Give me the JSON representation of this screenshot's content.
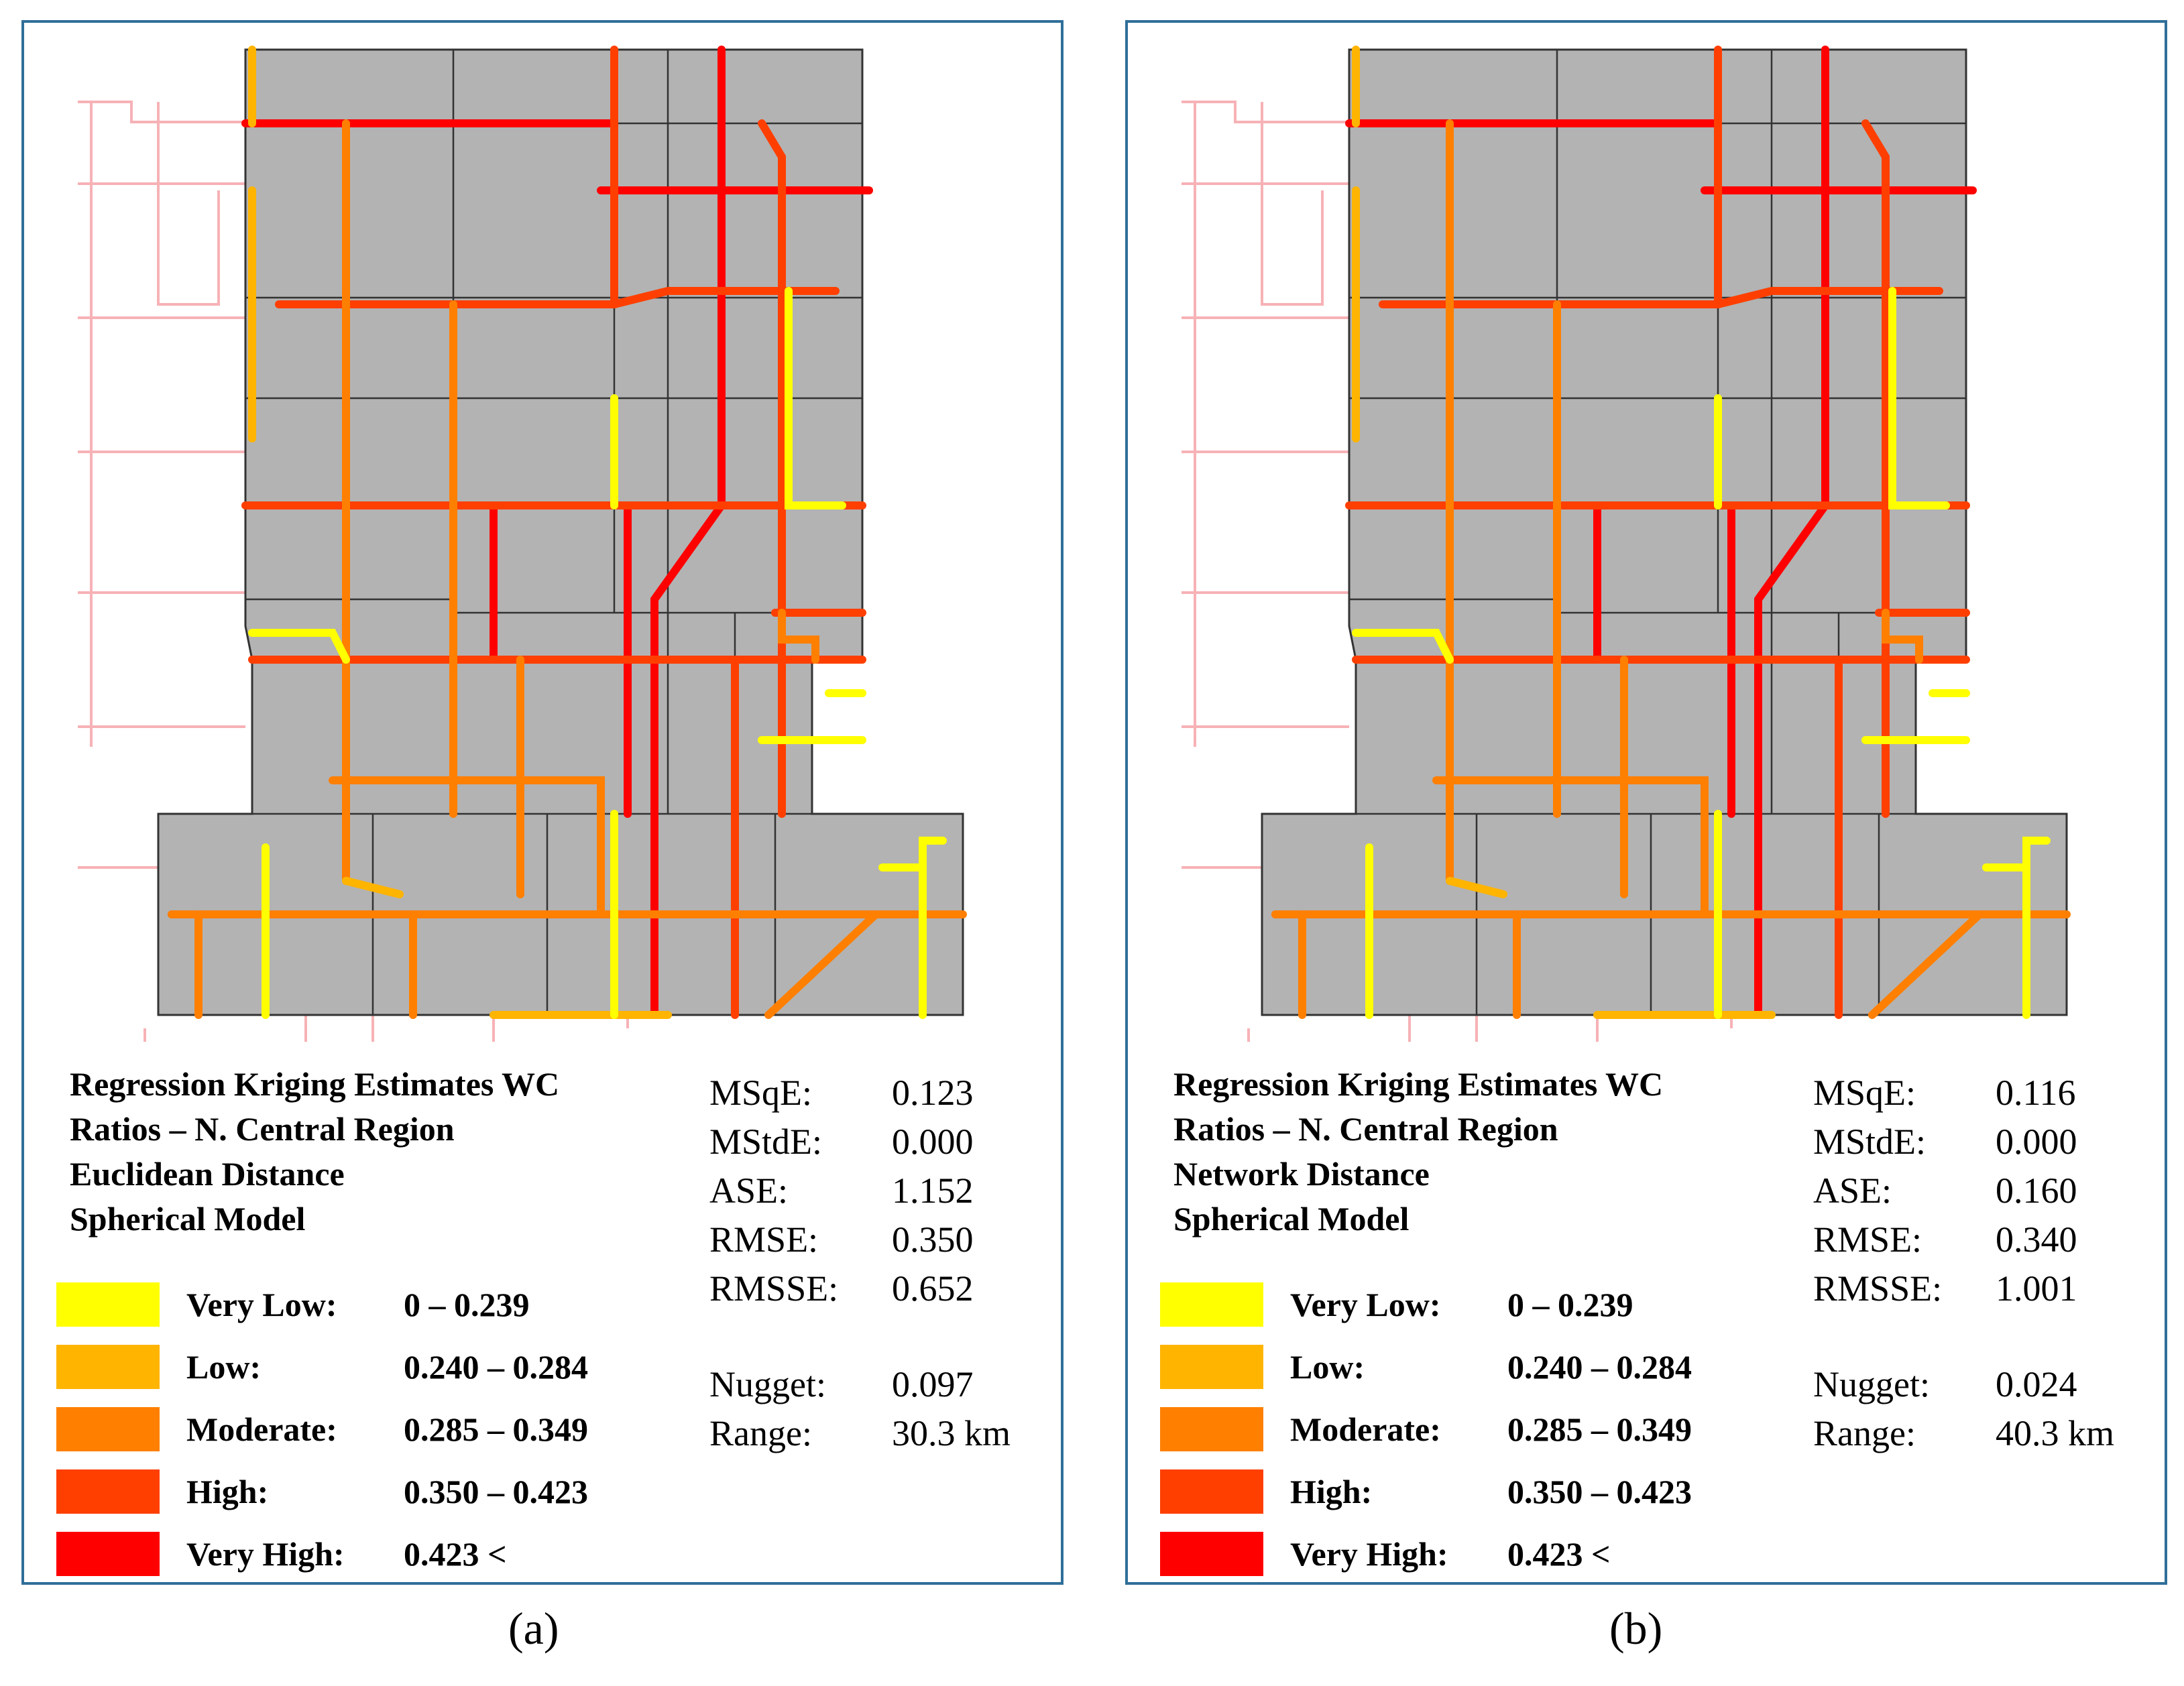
{
  "panels": [
    {
      "id": "a",
      "caption": "(a)",
      "title_lines": [
        "Regression Kriging Estimates WC",
        "Ratios – N. Central Region",
        "Euclidean Distance",
        "Spherical Model"
      ],
      "stats": [
        {
          "label": "MSqE:",
          "value": "0.123"
        },
        {
          "label": "MStdE:",
          "value": "0.000"
        },
        {
          "label": "ASE:",
          "value": "1.152"
        },
        {
          "label": "RMSE:",
          "value": "0.350"
        },
        {
          "label": "RMSSE:",
          "value": "0.652"
        }
      ],
      "model": [
        {
          "label": "Nugget:",
          "value": "0.097"
        },
        {
          "label": "Range:",
          "value": "30.3 km"
        }
      ]
    },
    {
      "id": "b",
      "caption": "(b)",
      "title_lines": [
        "Regression Kriging Estimates WC",
        "Ratios – N. Central Region",
        "Network Distance",
        "Spherical Model"
      ],
      "stats": [
        {
          "label": "MSqE:",
          "value": "0.116"
        },
        {
          "label": "MStdE:",
          "value": "0.000"
        },
        {
          "label": "ASE:",
          "value": "0.160"
        },
        {
          "label": "RMSE:",
          "value": "0.340"
        },
        {
          "label": "RMSSE:",
          "value": "1.001"
        }
      ],
      "model": [
        {
          "label": "Nugget:",
          "value": "0.024"
        },
        {
          "label": "Range:",
          "value": "40.3 km"
        }
      ]
    }
  ],
  "legend": [
    {
      "label": "Very Low:",
      "range": "0 – 0.239",
      "color": "#ffff00"
    },
    {
      "label": "Low:",
      "range": "0.240 – 0.284",
      "color": "#ffb400"
    },
    {
      "label": "Moderate:",
      "range": "0.285 – 0.349",
      "color": "#ff7f00"
    },
    {
      "label": "High:",
      "range": "0.350 – 0.423",
      "color": "#ff3f00"
    },
    {
      "label": "Very High:",
      "range": "0.423 <",
      "color": "#ff0000"
    }
  ],
  "colors": {
    "region_fill": "#b3b3b3",
    "region_border": "#333333",
    "background_road": "#f7b2b6",
    "frame": "#2f6f99"
  }
}
